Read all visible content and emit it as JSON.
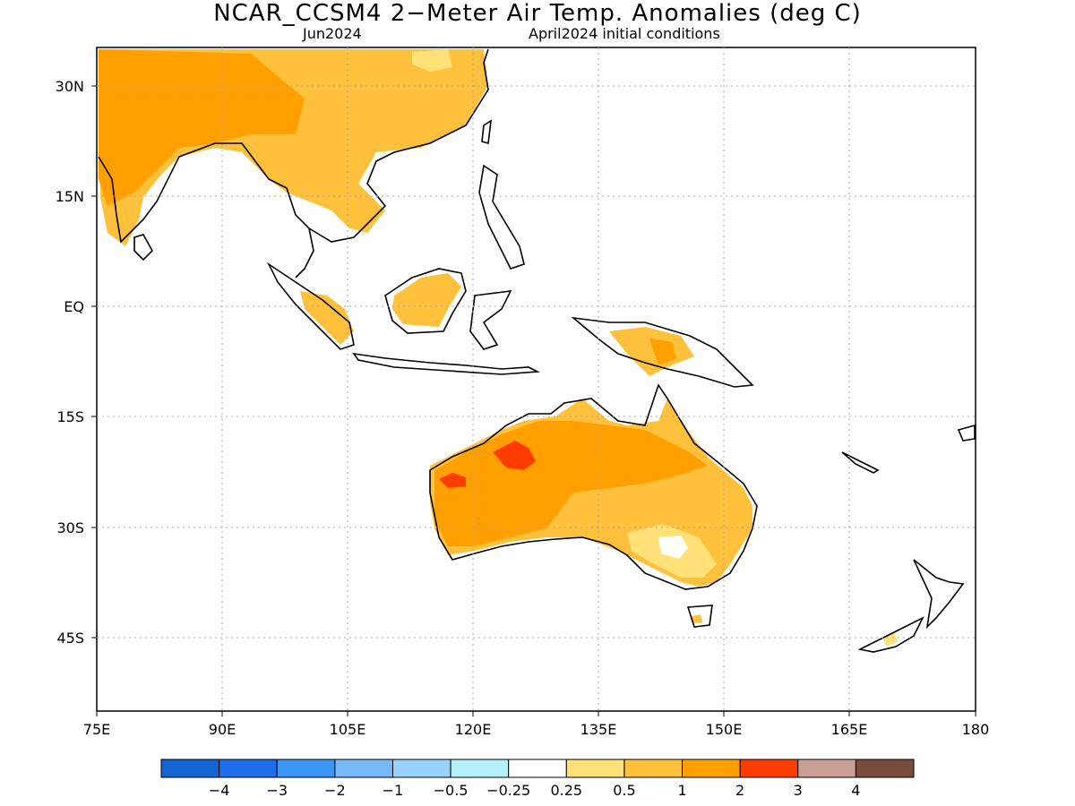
{
  "title": "NCAR_CCSM4 2−Meter Air Temp. Anomalies (deg C)",
  "subtitle_left": "Jun2024",
  "subtitle_right": "April2024 initial conditions",
  "map": {
    "lat_labels": [
      "30N",
      "15N",
      "EQ",
      "15S",
      "30S",
      "45S"
    ],
    "lon_labels": [
      "75E",
      "90E",
      "105E",
      "120E",
      "135E",
      "150E",
      "165E",
      "180"
    ],
    "lon_range": [
      75,
      180
    ],
    "lat_range": [
      -55,
      35
    ],
    "grid": "dotted"
  },
  "legend": {
    "colors": [
      "#1464d2",
      "#1e6eeb",
      "#3c96f5",
      "#78b9fa",
      "#96d2fa",
      "#b4f0fa",
      "#ffffff",
      "#ffe178",
      "#ffc03c",
      "#ffa000",
      "#ff3c00",
      "#c8a096",
      "#784c3c"
    ],
    "labels": [
      "−4",
      "−3",
      "−2",
      "−1",
      "−0.5",
      "−0.25",
      "0.25",
      "0.5",
      "1",
      "2",
      "3",
      "4"
    ]
  }
}
